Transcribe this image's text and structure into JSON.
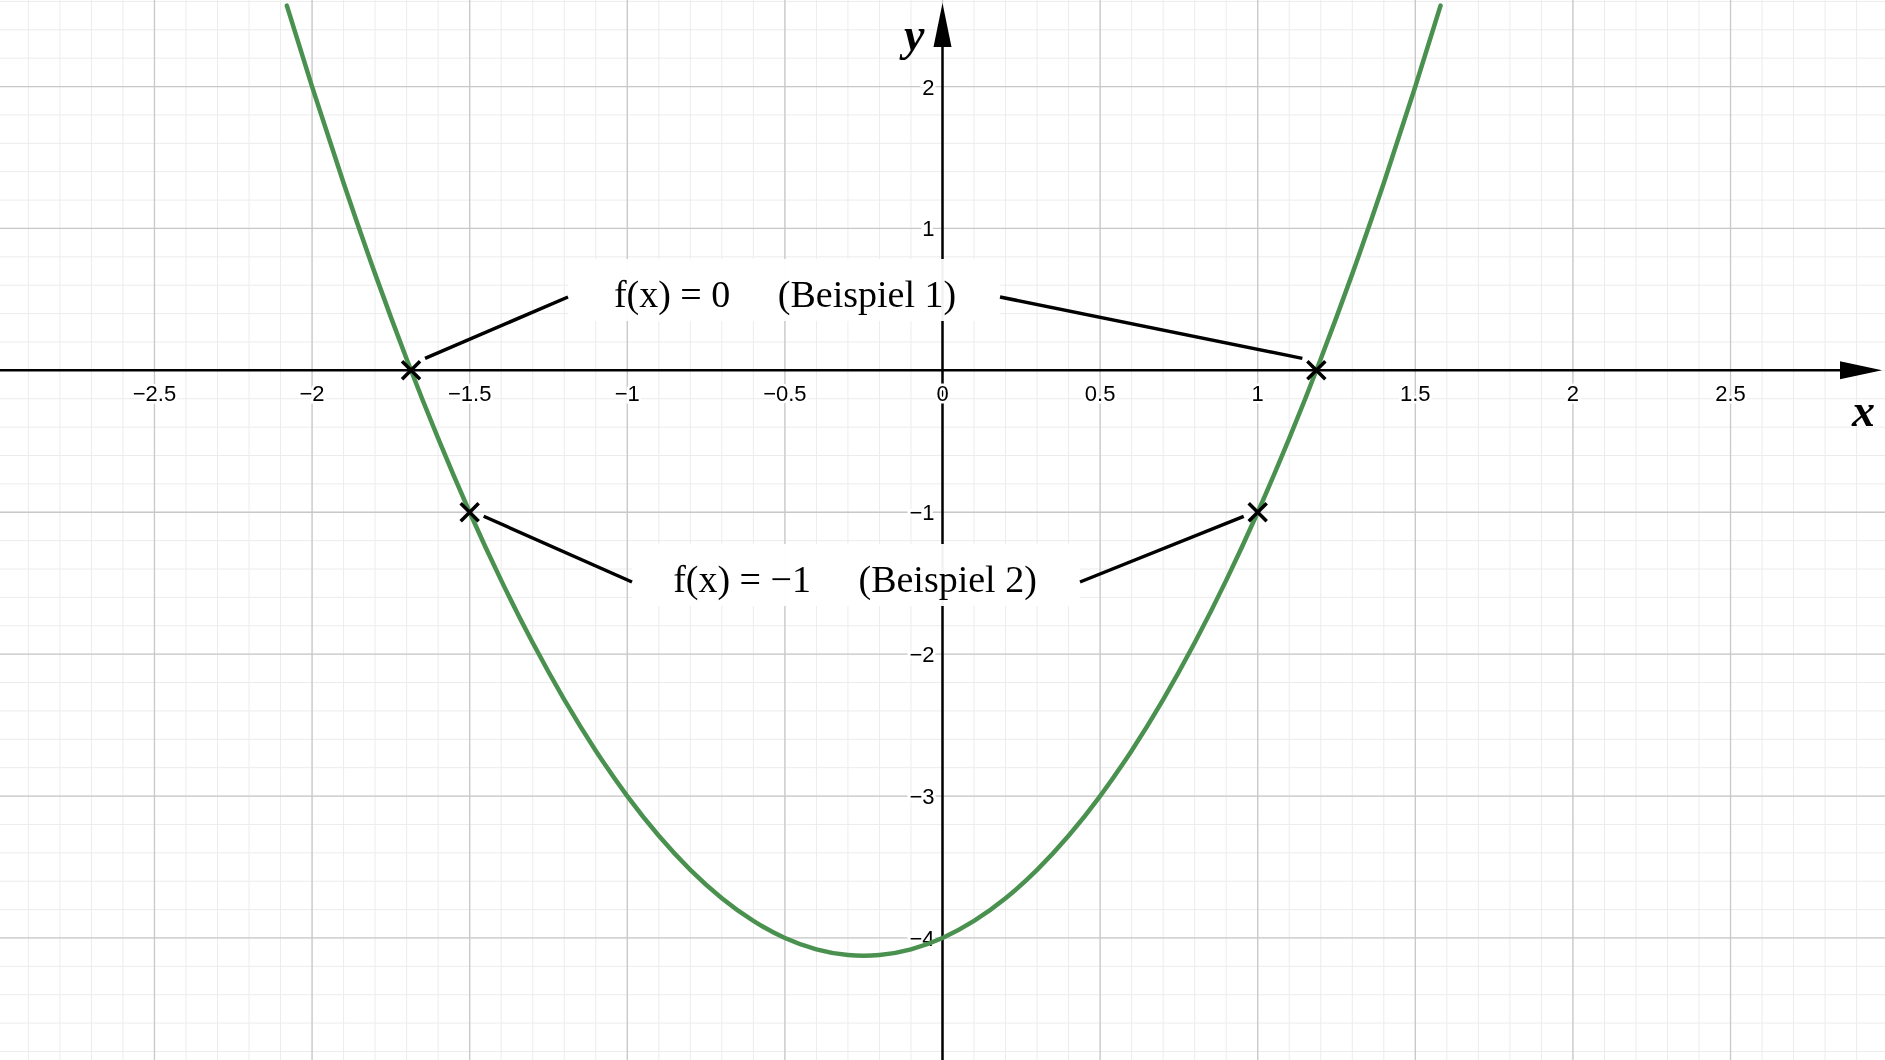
{
  "chart_data": {
    "type": "line",
    "xlabel": "x",
    "ylabel": "y",
    "xlim": [
      -2.99,
      2.99
    ],
    "ylim": [
      -4.86,
      2.61
    ],
    "xticks": [
      {
        "value": -2.5,
        "label": "−2.5"
      },
      {
        "value": -2,
        "label": "−2"
      },
      {
        "value": -1.5,
        "label": "−1.5"
      },
      {
        "value": -1,
        "label": "−1"
      },
      {
        "value": -0.5,
        "label": "−0.5"
      },
      0,
      0.5,
      1,
      1.5,
      2,
      2.5
    ],
    "yticks": [
      {
        "value": -4,
        "label": "−4"
      },
      {
        "value": -3,
        "label": "−3"
      },
      {
        "value": -2,
        "label": "−2"
      },
      {
        "value": -1,
        "label": "−1"
      },
      1,
      2
    ],
    "grid": true,
    "series": [
      {
        "color": "#4a9150",
        "x": [
          -2.08,
          -2.0,
          -1.9,
          -1.8,
          -1.7,
          -1.6,
          -1.5,
          -1.4,
          -1.3,
          -1.2,
          -1.1,
          -1.0,
          -0.9,
          -0.8,
          -0.7,
          -0.6,
          -0.5,
          -0.4,
          -0.3,
          -0.25,
          -0.2,
          -0.1,
          0,
          0.1,
          0.2,
          0.3,
          0.4,
          0.5,
          0.6,
          0.7,
          0.8,
          0.9,
          1.0,
          1.1,
          1.2,
          1.3,
          1.4,
          1.5,
          1.58
        ],
        "values": [
          2.57,
          2,
          1.32,
          0.68,
          0.08,
          -0.48,
          -1,
          -1.48,
          -1.92,
          -2.32,
          -2.68,
          -3,
          -3.28,
          -3.52,
          -3.72,
          -3.88,
          -4,
          -4.08,
          -4.12,
          -4.125,
          -4.12,
          -4.08,
          -4,
          -3.88,
          -3.72,
          -3.52,
          -3.28,
          -3,
          -2.68,
          -2.32,
          -1.92,
          -1.48,
          -1,
          -0.48,
          0.08,
          0.68,
          1.32,
          2,
          2.57
        ]
      },
      {
        "type": "scatter",
        "color": "#000000",
        "marker": "cross",
        "x": [
          -1.686,
          1.186,
          -1.5,
          1
        ],
        "values": [
          0,
          0,
          -1,
          -1
        ]
      }
    ],
    "annotations": [
      "f(x) = 0     (Beispiel 1)",
      "f(x) = −1     (Beispiel 2)"
    ]
  }
}
